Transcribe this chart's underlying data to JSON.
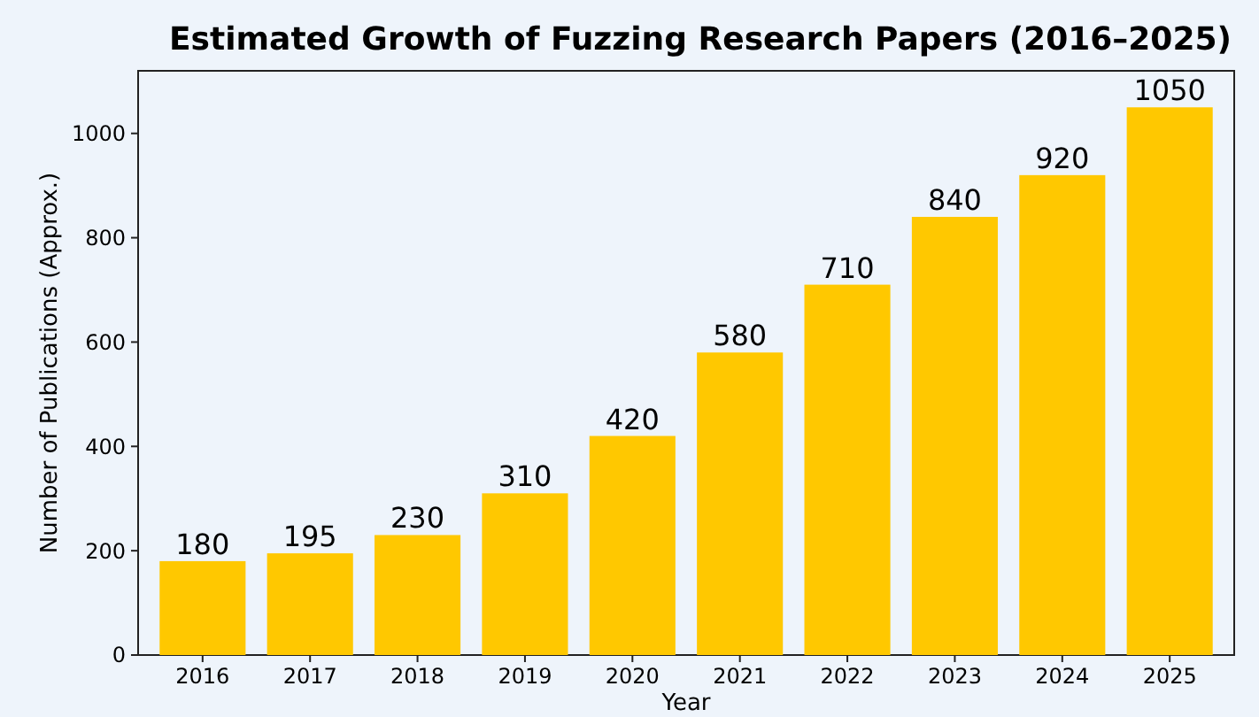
{
  "chart_data": {
    "type": "bar",
    "title": "Estimated Growth of Fuzzing Research Papers (2016–2025)",
    "xlabel": "Year",
    "ylabel": "Number of Publications (Approx.)",
    "categories": [
      "2016",
      "2017",
      "2018",
      "2019",
      "2020",
      "2021",
      "2022",
      "2023",
      "2024",
      "2025"
    ],
    "values": [
      180,
      195,
      230,
      310,
      420,
      580,
      710,
      840,
      920,
      1050
    ],
    "color": "#ffc800",
    "ylim": [
      0,
      1120
    ],
    "yticks": [
      0,
      200,
      400,
      600,
      800,
      1000
    ],
    "data_labels": true
  }
}
